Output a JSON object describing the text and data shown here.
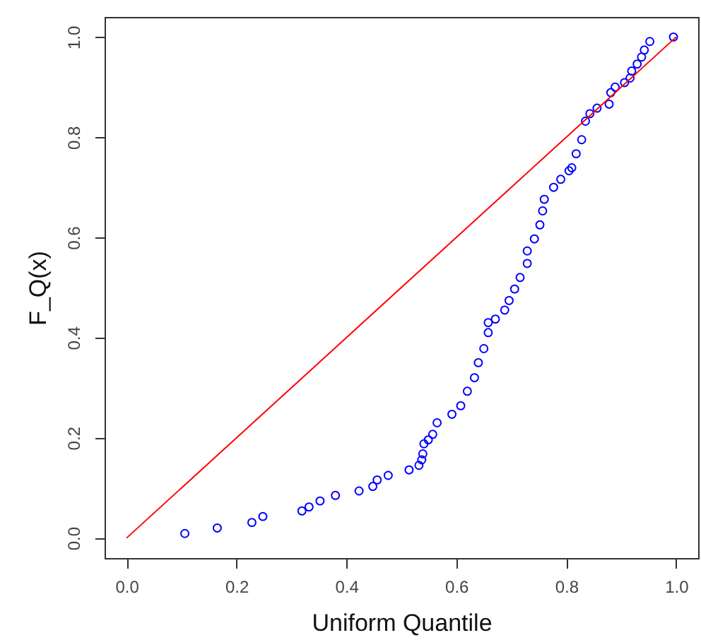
{
  "chart_data": {
    "type": "scatter",
    "xlabel": "Uniform Quantile",
    "ylabel": "F_Q(x)",
    "xlim": [
      -0.04,
      1.04
    ],
    "ylim": [
      -0.04,
      1.04
    ],
    "xticks": [
      {
        "value": 0,
        "label": "0.0"
      },
      0.2,
      0.4,
      0.6,
      0.8,
      {
        "value": 1,
        "label": "1.0"
      }
    ],
    "yticks": [
      {
        "value": 0,
        "label": "0.0"
      },
      0.2,
      0.4,
      0.6,
      0.8,
      {
        "value": 1,
        "label": "1.0"
      }
    ],
    "series": [
      {
        "type": "scatter",
        "color": "#0000ff",
        "marker": "circle",
        "x": [
          0.106,
          0.165,
          0.228,
          0.248,
          0.319,
          0.332,
          0.352,
          0.38,
          0.423,
          0.448,
          0.456,
          0.476,
          0.514,
          0.532,
          0.537,
          0.539,
          0.541,
          0.549,
          0.557,
          0.565,
          0.592,
          0.608,
          0.62,
          0.633,
          0.64,
          0.65,
          0.658,
          0.658,
          0.671,
          0.688,
          0.696,
          0.706,
          0.716,
          0.729,
          0.729,
          0.742,
          0.752,
          0.757,
          0.76,
          0.777,
          0.79,
          0.805,
          0.81,
          0.818,
          0.828,
          0.835,
          0.843,
          0.856,
          0.878,
          0.881,
          0.889,
          0.906,
          0.916,
          0.919,
          0.929,
          0.937,
          0.942,
          0.952,
          0.995
        ],
        "values": [
          0.009,
          0.02,
          0.031,
          0.043,
          0.054,
          0.062,
          0.074,
          0.085,
          0.094,
          0.103,
          0.116,
          0.125,
          0.136,
          0.145,
          0.156,
          0.168,
          0.188,
          0.196,
          0.207,
          0.23,
          0.247,
          0.264,
          0.293,
          0.32,
          0.35,
          0.378,
          0.41,
          0.43,
          0.437,
          0.455,
          0.474,
          0.497,
          0.52,
          0.548,
          0.573,
          0.597,
          0.625,
          0.653,
          0.676,
          0.7,
          0.716,
          0.733,
          0.739,
          0.767,
          0.795,
          0.832,
          0.847,
          0.858,
          0.866,
          0.889,
          0.9,
          0.909,
          0.918,
          0.932,
          0.946,
          0.96,
          0.974,
          0.991,
          1.0
        ]
      },
      {
        "type": "line",
        "color": "#ff0000",
        "marker": "none",
        "x": [
          0,
          1
        ],
        "values": [
          0,
          1
        ]
      }
    ]
  }
}
